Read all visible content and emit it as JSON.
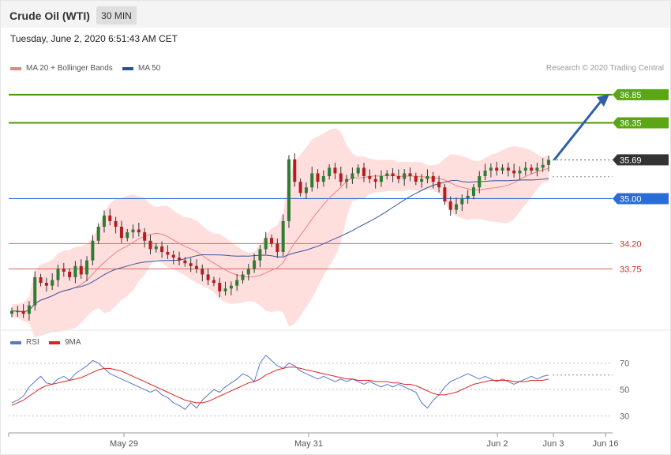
{
  "header": {
    "instrument": "Crude Oil (WTI)",
    "interval": "30 MIN"
  },
  "datetime": "Tuesday, June 2, 2020 6:51:43 AM CET",
  "credit": "Research © 2020 Trading Central",
  "legend_main": [
    {
      "label": "MA 20 + Bollinger Bands",
      "color": "#f08080"
    },
    {
      "label": "MA 50",
      "color": "#2f4f9e"
    }
  ],
  "legend_rsi": [
    {
      "label": "RSI",
      "color": "#5577cc"
    },
    {
      "label": "9MA",
      "color": "#dd2222"
    }
  ],
  "colors": {
    "up": "#2e7d32",
    "down": "#b71c1c",
    "band": "#ffdede",
    "ma20": "#f08080",
    "ma50": "#3a55a0",
    "resistance": "#4c9a0a",
    "pivot": "#2a6dd8",
    "support": "#e06060",
    "arrow": "#2f5fa8",
    "last": "#333333"
  },
  "chart_data": [
    {
      "type": "candlestick",
      "title": "Crude Oil (WTI)",
      "ylim": [
        32.7,
        37.2
      ],
      "x_tick_labels": [
        "May 29",
        "May 31",
        "Jun 2",
        "Jun 3",
        "Jun 16"
      ],
      "levels": [
        {
          "value": 36.85,
          "label": "36.85",
          "kind": "resistance"
        },
        {
          "value": 36.35,
          "label": "36.35",
          "kind": "resistance"
        },
        {
          "value": 35.69,
          "label": "35.69",
          "kind": "last"
        },
        {
          "value": 35.0,
          "label": "35.00",
          "kind": "pivot"
        },
        {
          "value": 34.2,
          "label": "34.20",
          "kind": "support"
        },
        {
          "value": 33.75,
          "label": "33.75",
          "kind": "support"
        }
      ],
      "close": [
        33.0,
        33.0,
        32.95,
        33.1,
        33.6,
        33.5,
        33.45,
        33.55,
        33.75,
        33.7,
        33.6,
        33.8,
        33.65,
        33.9,
        34.25,
        34.5,
        34.7,
        34.6,
        34.5,
        34.3,
        34.4,
        34.45,
        34.4,
        34.25,
        34.1,
        34.15,
        34.05,
        34.0,
        33.95,
        33.9,
        33.85,
        33.8,
        33.75,
        33.65,
        33.55,
        33.5,
        33.35,
        33.4,
        33.45,
        33.55,
        33.65,
        33.75,
        33.9,
        34.1,
        34.3,
        34.2,
        34.05,
        34.6,
        35.7,
        35.3,
        35.1,
        35.2,
        35.45,
        35.3,
        35.4,
        35.55,
        35.45,
        35.3,
        35.35,
        35.45,
        35.55,
        35.4,
        35.35,
        35.3,
        35.4,
        35.45,
        35.4,
        35.35,
        35.45,
        35.4,
        35.3,
        35.35,
        35.4,
        35.3,
        35.2,
        34.95,
        34.8,
        34.9,
        35.0,
        35.05,
        35.2,
        35.4,
        35.5,
        35.55,
        35.5,
        35.55,
        35.5,
        35.45,
        35.5,
        35.55,
        35.5,
        35.55,
        35.6,
        35.69
      ],
      "rsi": {
        "ylim": [
          22,
          80
        ],
        "ticks": [
          70,
          50,
          30
        ],
        "values": [
          40,
          42,
          45,
          52,
          56,
          60,
          55,
          54,
          58,
          60,
          57,
          62,
          65,
          68,
          72,
          70,
          66,
          62,
          60,
          58,
          56,
          54,
          52,
          50,
          48,
          50,
          46,
          44,
          40,
          38,
          35,
          40,
          36,
          42,
          46,
          50,
          48,
          52,
          55,
          58,
          62,
          60,
          56,
          70,
          76,
          72,
          68,
          66,
          70,
          68,
          64,
          62,
          60,
          58,
          60,
          58,
          56,
          58,
          56,
          58,
          56,
          54,
          56,
          54,
          52,
          54,
          52,
          54,
          52,
          50,
          48,
          40,
          36,
          42,
          46,
          52,
          56,
          58,
          60,
          62,
          60,
          58,
          60,
          58,
          56,
          58,
          56,
          54,
          56,
          58,
          60,
          58,
          60,
          61
        ],
        "ma": [
          38,
          40,
          42,
          45,
          48,
          51,
          53,
          54,
          55,
          56,
          57,
          58,
          59,
          61,
          63,
          65,
          66,
          66,
          65,
          64,
          62,
          60,
          58,
          56,
          54,
          52,
          50,
          48,
          46,
          44,
          42,
          41,
          40,
          40,
          41,
          43,
          45,
          47,
          49,
          51,
          53,
          55,
          56,
          58,
          61,
          63,
          65,
          66,
          67,
          67,
          66,
          65,
          64,
          63,
          62,
          61,
          60,
          59,
          58,
          58,
          57,
          57,
          57,
          56,
          56,
          56,
          55,
          55,
          54,
          54,
          53,
          51,
          49,
          47,
          46,
          46,
          47,
          48,
          50,
          52,
          54,
          55,
          56,
          57,
          57,
          57,
          57,
          56,
          56,
          56,
          57,
          57,
          57,
          58
        ]
      }
    }
  ],
  "x_labels": [
    {
      "label": "May 29"
    },
    {
      "label": "May 31"
    },
    {
      "label": "Jun 2"
    },
    {
      "label": "Jun 3"
    },
    {
      "label": "Jun 16"
    }
  ]
}
